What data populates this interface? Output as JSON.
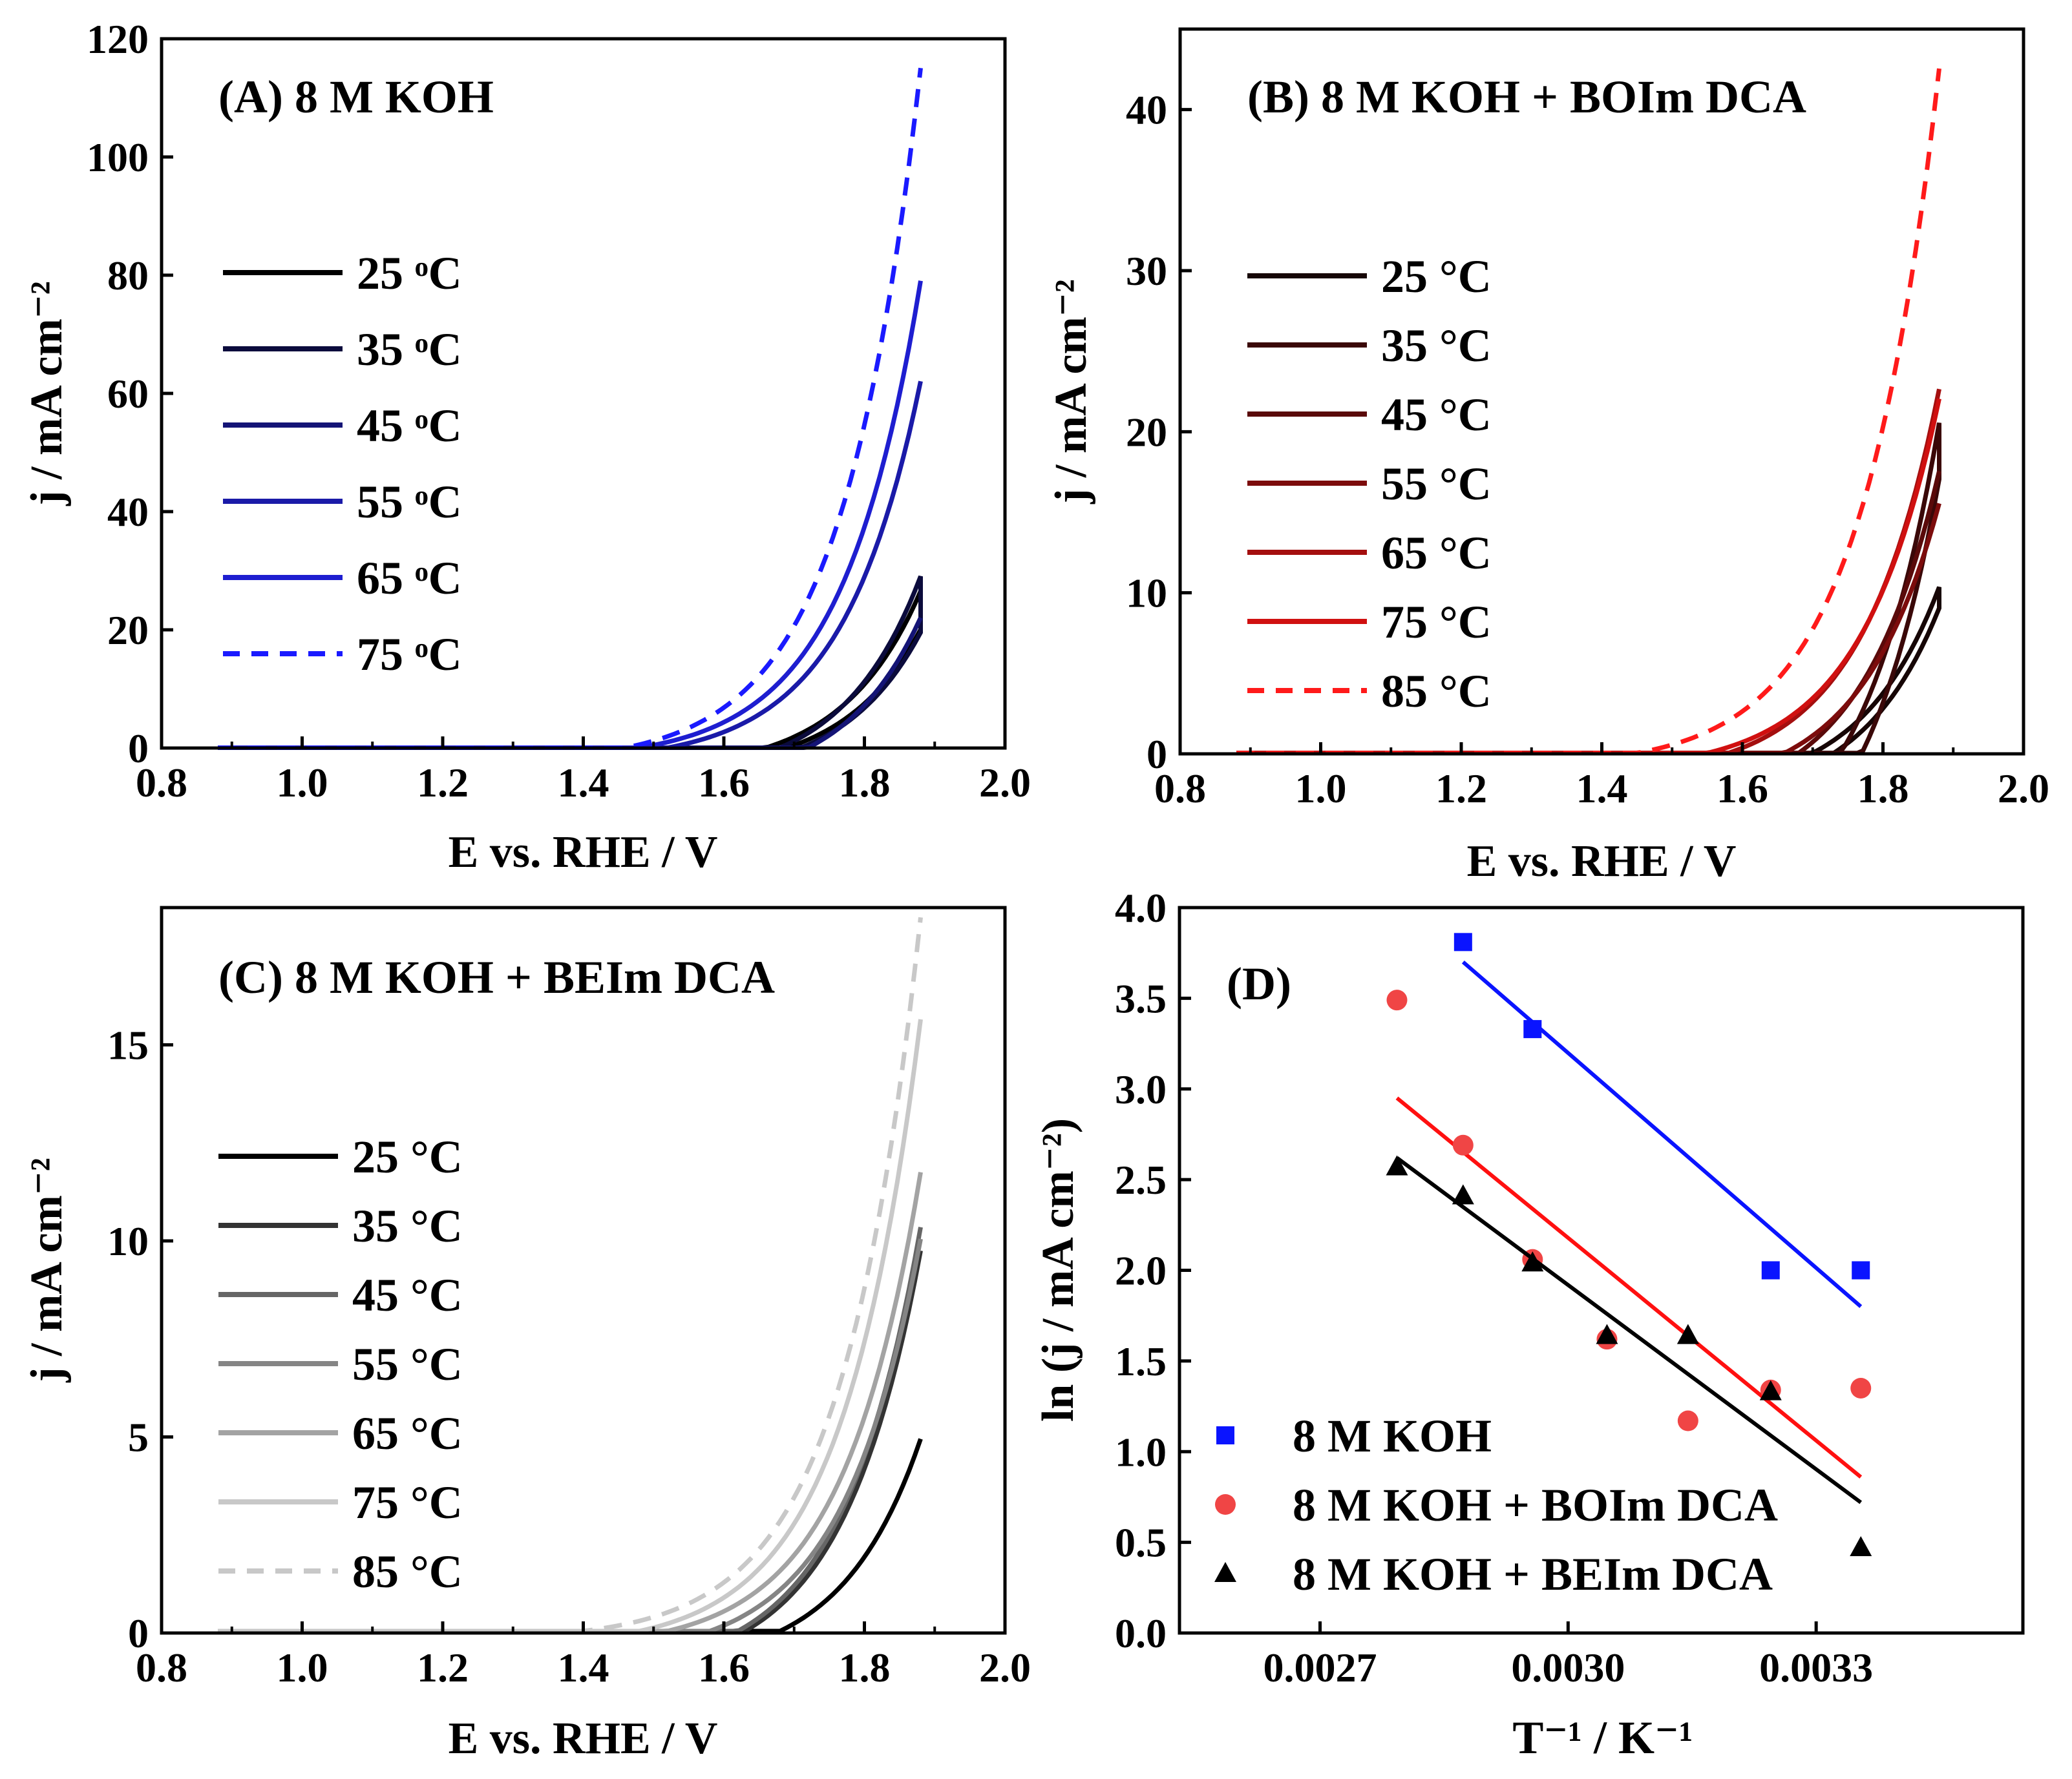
{
  "figure": {
    "panels": [
      {
        "id": "A",
        "type": "line",
        "title": "(A) 8 M KOH",
        "xlabel": "E vs. RHE / V",
        "ylabel": "j / mA cm⁻²",
        "xlim": [
          0.8,
          2.0
        ],
        "ylim": [
          0,
          120
        ],
        "xticks": [
          0.8,
          1.0,
          1.2,
          1.4,
          1.6,
          1.8,
          2.0
        ],
        "xtick_labels": [
          "0.8",
          "1.0",
          "1.2",
          "1.4",
          "1.6",
          "1.8",
          "2.0"
        ],
        "yticks": [
          0,
          20,
          40,
          60,
          80,
          100,
          120
        ],
        "ytick_labels": [
          "0",
          "20",
          "40",
          "60",
          "80",
          "100",
          "120"
        ],
        "series": [
          {
            "name": "25 ᵒC",
            "color": "#000000",
            "dash": false,
            "onset": 1.66,
            "jmax": 26.5,
            "sweep": "cv",
            "back": 20.0
          },
          {
            "name": "35 ᵒC",
            "color": "#0b0b3c",
            "dash": false,
            "onset": 1.68,
            "jmax": 29.0,
            "sweep": "cv",
            "back": 19.5
          },
          {
            "name": "45 ᵒC",
            "color": "#141476",
            "dash": false,
            "onset": 1.72,
            "jmax": 22.0,
            "sweep": "lsv"
          },
          {
            "name": "55 ᵒC",
            "color": "#1a1aa8",
            "dash": false,
            "onset": 1.52,
            "jmax": 62.0,
            "sweep": "lsv"
          },
          {
            "name": "65 ᵒC",
            "color": "#1e1ed0",
            "dash": false,
            "onset": 1.48,
            "jmax": 79.0,
            "sweep": "lsv"
          },
          {
            "name": "75 ᵒC",
            "color": "#1a1aff",
            "dash": true,
            "onset": 1.46,
            "jmax": 115.0,
            "sweep": "lsv"
          }
        ]
      },
      {
        "id": "B",
        "type": "line",
        "title": "(B) 8 M KOH + BOIm DCA",
        "xlabel": "E vs. RHE / V",
        "ylabel": "j / mA cm⁻²",
        "xlim": [
          0.8,
          2.0
        ],
        "ylim": [
          0,
          45
        ],
        "xticks": [
          0.8,
          1.0,
          1.2,
          1.4,
          1.6,
          1.8,
          2.0
        ],
        "xtick_labels": [
          "0.8",
          "1.0",
          "1.2",
          "1.4",
          "1.6",
          "1.8",
          "2.0"
        ],
        "yticks": [
          0,
          10,
          20,
          30,
          40
        ],
        "ytick_labels": [
          "0",
          "10",
          "20",
          "30",
          "40"
        ],
        "series": [
          {
            "name": "25 °C",
            "color": "#160606",
            "dash": false,
            "onset": 1.7,
            "jmax": 10.3,
            "sweep": "cv",
            "back": 9.0
          },
          {
            "name": "35 °C",
            "color": "#3a0808",
            "dash": false,
            "onset": 1.74,
            "jmax": 20.5,
            "sweep": "cv",
            "back": 17.0
          },
          {
            "name": "45 °C",
            "color": "#5a0a0a",
            "dash": false,
            "onset": 1.68,
            "jmax": 17.5,
            "sweep": "lsv"
          },
          {
            "name": "55 °C",
            "color": "#7c0c0c",
            "dash": false,
            "onset": 1.66,
            "jmax": 15.5,
            "sweep": "lsv"
          },
          {
            "name": "65 °C",
            "color": "#a40f0f",
            "dash": false,
            "onset": 1.58,
            "jmax": 22.6,
            "sweep": "lsv"
          },
          {
            "name": "75 °C",
            "color": "#d01010",
            "dash": false,
            "onset": 1.55,
            "jmax": 22.0,
            "sweep": "lsv"
          },
          {
            "name": "85 °C",
            "color": "#ff1a1a",
            "dash": true,
            "onset": 1.45,
            "jmax": 42.5,
            "sweep": "lsv"
          }
        ]
      },
      {
        "id": "C",
        "type": "line",
        "title": "(C) 8 M KOH + BEIm DCA",
        "xlabel": "E vs. RHE / V",
        "ylabel": "j / mA cm⁻²",
        "xlim": [
          0.8,
          2.0
        ],
        "ylim": [
          0,
          18.5
        ],
        "xticks": [
          0.8,
          1.0,
          1.2,
          1.4,
          1.6,
          1.8,
          2.0
        ],
        "xtick_labels": [
          "0.8",
          "1.0",
          "1.2",
          "1.4",
          "1.6",
          "1.8",
          "2.0"
        ],
        "yticks": [
          0,
          5,
          10,
          15
        ],
        "ytick_labels": [
          "0",
          "5",
          "10",
          "15"
        ],
        "series": [
          {
            "name": "25 °C",
            "color": "#000000",
            "dash": false,
            "onset": 1.68,
            "jmax": 4.9,
            "sweep": "lsv"
          },
          {
            "name": "35 °C",
            "color": "#333333",
            "dash": false,
            "onset": 1.63,
            "jmax": 9.7,
            "sweep": "lsv"
          },
          {
            "name": "45 °C",
            "color": "#666666",
            "dash": false,
            "onset": 1.62,
            "jmax": 10.3,
            "sweep": "lsv"
          },
          {
            "name": "55 °C",
            "color": "#858585",
            "dash": false,
            "onset": 1.58,
            "jmax": 10.0,
            "sweep": "lsv"
          },
          {
            "name": "65 °C",
            "color": "#a3a3a3",
            "dash": false,
            "onset": 1.52,
            "jmax": 11.7,
            "sweep": "lsv"
          },
          {
            "name": "75 °C",
            "color": "#c8c8c8",
            "dash": false,
            "onset": 1.48,
            "jmax": 15.6,
            "sweep": "lsv"
          },
          {
            "name": "85 °C",
            "color": "#c8c8c8",
            "dash": true,
            "onset": 1.4,
            "jmax": 18.2,
            "sweep": "lsv"
          }
        ]
      },
      {
        "id": "D",
        "type": "scatter",
        "title": "(D)",
        "xlabel": "T⁻¹ / K⁻¹",
        "ylabel": "ln (j / mA cm⁻²)",
        "xlim": [
          0.00253,
          0.00355
        ],
        "ylim": [
          0.0,
          4.0
        ],
        "xticks": [
          0.0027,
          0.003,
          0.0033
        ],
        "xtick_labels": [
          "0.0027",
          "0.0030",
          "0.0033"
        ],
        "yticks": [
          0.0,
          0.5,
          1.0,
          1.5,
          2.0,
          2.5,
          3.0,
          3.5,
          4.0
        ],
        "ytick_labels": [
          "0.0",
          "0.5",
          "1.0",
          "1.5",
          "2.0",
          "2.5",
          "3.0",
          "3.5",
          "4.0"
        ],
        "series": [
          {
            "name": "8 M KOH",
            "color": "#0a14ff",
            "marker": "square",
            "x": [
              0.002873,
              0.002957,
              0.003245,
              0.003354
            ],
            "y": [
              3.81,
              3.33,
              2.0,
              2.0
            ],
            "fit": {
              "x0": 0.002873,
              "y0": 3.7,
              "x1": 0.003354,
              "y1": 1.8
            }
          },
          {
            "name": "8 M KOH + BOIm DCA",
            "color": "#f04545",
            "marker": "circle",
            "x": [
              0.002793,
              0.002873,
              0.002957,
              0.003047,
              0.003145,
              0.003245,
              0.003354
            ],
            "y": [
              3.49,
              2.69,
              2.06,
              1.62,
              1.17,
              1.34,
              1.35
            ],
            "fit": {
              "x0": 0.002793,
              "y0": 2.95,
              "x1": 0.003354,
              "y1": 0.86
            }
          },
          {
            "name": "8 M KOH + BEIm DCA",
            "color": "#000000",
            "marker": "triangle",
            "x": [
              0.002793,
              0.002873,
              0.002957,
              0.003047,
              0.003145,
              0.003245,
              0.003354
            ],
            "y": [
              2.57,
              2.41,
              2.04,
              1.64,
              1.64,
              1.33,
              0.47
            ],
            "fit": {
              "x0": 0.002793,
              "y0": 2.62,
              "x1": 0.003354,
              "y1": 0.72
            }
          }
        ]
      }
    ]
  }
}
